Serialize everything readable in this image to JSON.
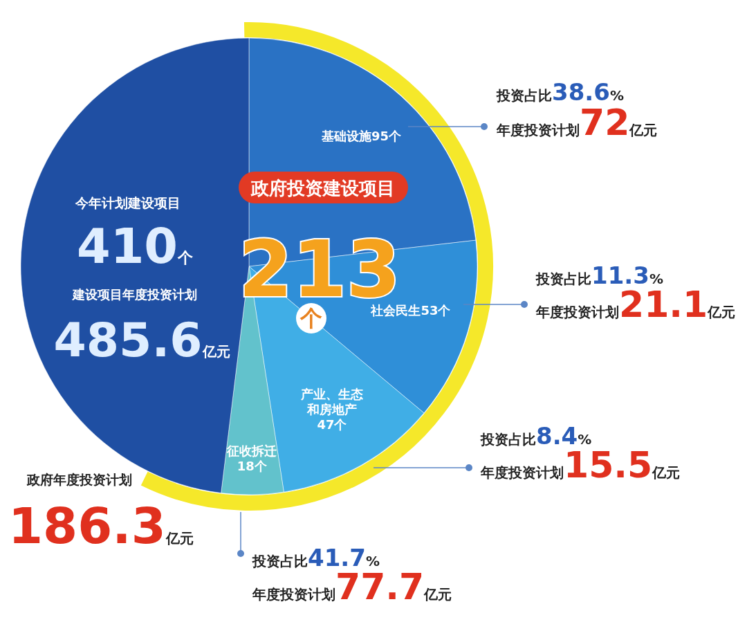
{
  "chart_data": {
    "type": "pie",
    "title": "政府投资建设项目",
    "subtitle": "213个",
    "categories": [
      "基础设施",
      "社会民生",
      "产业、生态和房地产",
      "征收拆迁",
      null
    ],
    "values": [
      95,
      53,
      47,
      18,
      197
    ],
    "value_labels": [
      "95个",
      "53个",
      "47个",
      "18个",
      null
    ],
    "colors": [
      "#2a72c4",
      "#2f8fd8",
      "#40aee6",
      "#62c2cc",
      "#1f4fa3"
    ],
    "annotations": [
      "今年计划建设项目",
      "410个",
      "建设项目年度投资计划",
      "485.6亿元",
      "政府年度投资计划",
      "186.3亿元",
      "投资占比38.6%",
      "年度投资计划72亿元",
      "投资占比11.3%",
      "年度投资计划21.1亿元",
      "投资占比8.4%",
      "年度投资计划15.5亿元",
      "投资占比41.7%",
      "年度投资计划77.7亿元"
    ]
  }
}
